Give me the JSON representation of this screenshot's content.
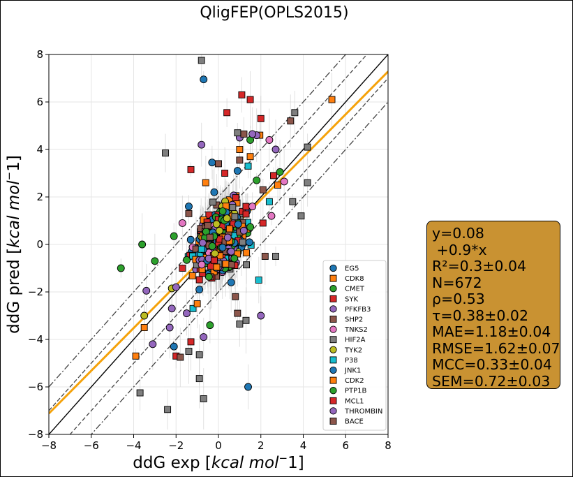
{
  "chart_data": {
    "type": "scatter",
    "title": "QligFEP(OPLS2015)",
    "xlabel_prefix": "ddG exp [",
    "ylabel_prefix": "ddG pred [",
    "unit": "kcal mol",
    "unit_sup": "−",
    "unit_tail": "1]",
    "xlim": [
      -8,
      8
    ],
    "ylim": [
      -8,
      8
    ],
    "xticks": [
      "−8",
      "−6",
      "−4",
      "−2",
      "0",
      "2",
      "4",
      "6",
      "8"
    ],
    "yticks": [
      "−8",
      "−6",
      "−4",
      "−2",
      "0",
      "2",
      "4",
      "6",
      "8"
    ],
    "grid": true,
    "legend_position": "lower-right",
    "reference_lines": {
      "identity": {
        "slope": 1,
        "intercept": 0,
        "color": "#000000",
        "style": "solid"
      },
      "offset_1": {
        "offset": 1,
        "color": "#444444",
        "style": "dashed"
      },
      "offset_2": {
        "offset": 2,
        "color": "#444444",
        "style": "dashdot"
      },
      "fit": {
        "slope": 0.9,
        "intercept": 0.08,
        "color": "#f5a20a"
      }
    },
    "series": [
      {
        "name": "EG5",
        "marker": "circle",
        "color": "#1f77b4"
      },
      {
        "name": "CDK8",
        "marker": "square",
        "color": "#ff7f0e"
      },
      {
        "name": "CMET",
        "marker": "circle",
        "color": "#2ca02c"
      },
      {
        "name": "SYK",
        "marker": "square",
        "color": "#d62728"
      },
      {
        "name": "PFKFB3",
        "marker": "circle",
        "color": "#9467bd"
      },
      {
        "name": "SHP2",
        "marker": "square",
        "color": "#8c564b"
      },
      {
        "name": "TNKS2",
        "marker": "circle",
        "color": "#e377c2"
      },
      {
        "name": "HIF2A",
        "marker": "square",
        "color": "#7f7f7f"
      },
      {
        "name": "TYK2",
        "marker": "circle",
        "color": "#bcbd22"
      },
      {
        "name": "P38",
        "marker": "square",
        "color": "#17becf"
      },
      {
        "name": "JNK1",
        "marker": "circle",
        "color": "#1f77b4"
      },
      {
        "name": "CDK2",
        "marker": "square",
        "color": "#ff7f0e"
      },
      {
        "name": "PTP1B",
        "marker": "circle",
        "color": "#2ca02c"
      },
      {
        "name": "MCL1",
        "marker": "square",
        "color": "#d62728"
      },
      {
        "name": "THROMBIN",
        "marker": "circle",
        "color": "#9467bd"
      },
      {
        "name": "BACE",
        "marker": "square",
        "color": "#8c564b"
      }
    ],
    "points": [
      {
        "s": 0,
        "x": -0.7,
        "y": 6.95
      },
      {
        "s": 0,
        "x": 1.4,
        "y": -6.0
      },
      {
        "s": 0,
        "x": -0.3,
        "y": 3.45
      },
      {
        "s": 0,
        "x": -1.4,
        "y": 1.6
      },
      {
        "s": 0,
        "x": -0.9,
        "y": -1.9
      },
      {
        "s": 0,
        "x": 0.9,
        "y": 3.1
      },
      {
        "s": 1,
        "x": 5.35,
        "y": 6.1
      },
      {
        "s": 1,
        "x": -3.9,
        "y": -4.7
      },
      {
        "s": 1,
        "x": 1.95,
        "y": 4.6
      },
      {
        "s": 1,
        "x": -0.6,
        "y": 2.6
      },
      {
        "s": 1,
        "x": 1.5,
        "y": 3.7
      },
      {
        "s": 1,
        "x": 2.8,
        "y": 2.5
      },
      {
        "s": 2,
        "x": -4.6,
        "y": -1.0
      },
      {
        "s": 2,
        "x": -3.6,
        "y": 0.0
      },
      {
        "s": 2,
        "x": -3.0,
        "y": -0.7
      },
      {
        "s": 2,
        "x": 2.9,
        "y": 3.05
      },
      {
        "s": 2,
        "x": -2.1,
        "y": 0.35
      },
      {
        "s": 2,
        "x": 1.5,
        "y": 4.4
      },
      {
        "s": 3,
        "x": 1.1,
        "y": 6.3
      },
      {
        "s": 3,
        "x": 1.5,
        "y": 6.1
      },
      {
        "s": 3,
        "x": 0.4,
        "y": 5.55
      },
      {
        "s": 3,
        "x": -1.3,
        "y": 3.15
      },
      {
        "s": 3,
        "x": 2.0,
        "y": 5.3
      },
      {
        "s": 3,
        "x": -2.0,
        "y": -4.7
      },
      {
        "s": 3,
        "x": -1.3,
        "y": -4.1
      },
      {
        "s": 3,
        "x": 1.3,
        "y": 1.6
      },
      {
        "s": 3,
        "x": 2.6,
        "y": 2.9
      },
      {
        "s": 4,
        "x": -3.4,
        "y": -1.95
      },
      {
        "s": 4,
        "x": -3.1,
        "y": -4.2
      },
      {
        "s": 4,
        "x": -0.8,
        "y": 4.2
      },
      {
        "s": 4,
        "x": 2.7,
        "y": 4.0
      },
      {
        "s": 4,
        "x": 2.0,
        "y": -3.0
      },
      {
        "s": 4,
        "x": -2.3,
        "y": -3.5
      },
      {
        "s": 4,
        "x": 1.0,
        "y": 4.5
      },
      {
        "s": 4,
        "x": -2.2,
        "y": -2.7
      },
      {
        "s": 4,
        "x": -0.7,
        "y": -3.9
      },
      {
        "s": 5,
        "x": 3.4,
        "y": 5.2
      },
      {
        "s": 5,
        "x": 0.0,
        "y": 3.4
      },
      {
        "s": 5,
        "x": 1.2,
        "y": 4.65
      },
      {
        "s": 5,
        "x": -1.8,
        "y": -4.75
      },
      {
        "s": 5,
        "x": 0.9,
        "y": -2.9
      },
      {
        "s": 5,
        "x": 2.1,
        "y": 2.3
      },
      {
        "s": 6,
        "x": 2.4,
        "y": 4.4
      },
      {
        "s": 6,
        "x": 3.1,
        "y": 2.65
      },
      {
        "s": 6,
        "x": 2.5,
        "y": 1.2
      },
      {
        "s": 6,
        "x": 1.6,
        "y": 1.6
      },
      {
        "s": 6,
        "x": -1.7,
        "y": 0.9
      },
      {
        "s": 7,
        "x": -0.8,
        "y": 7.75
      },
      {
        "s": 7,
        "x": 3.6,
        "y": 5.55
      },
      {
        "s": 7,
        "x": 4.2,
        "y": 4.1
      },
      {
        "s": 7,
        "x": -2.5,
        "y": 3.85
      },
      {
        "s": 7,
        "x": 4.2,
        "y": 2.6
      },
      {
        "s": 7,
        "x": 3.5,
        "y": 1.8
      },
      {
        "s": 7,
        "x": 3.9,
        "y": 1.2
      },
      {
        "s": 7,
        "x": -3.7,
        "y": -6.25
      },
      {
        "s": 7,
        "x": -2.4,
        "y": -6.95
      },
      {
        "s": 7,
        "x": -0.7,
        "y": -6.5
      },
      {
        "s": 7,
        "x": -0.9,
        "y": -5.65
      },
      {
        "s": 7,
        "x": -1.4,
        "y": -4.5
      },
      {
        "s": 7,
        "x": -0.9,
        "y": -4.65
      },
      {
        "s": 7,
        "x": 1.3,
        "y": -3.2
      },
      {
        "s": 7,
        "x": 1.0,
        "y": -3.35
      },
      {
        "s": 7,
        "x": 2.7,
        "y": -0.5
      },
      {
        "s": 7,
        "x": 0.9,
        "y": 4.7
      },
      {
        "s": 8,
        "x": -3.5,
        "y": -3.0
      },
      {
        "s": 8,
        "x": -2.2,
        "y": -1.85
      },
      {
        "s": 8,
        "x": 0.4,
        "y": 1.1
      },
      {
        "s": 9,
        "x": 2.4,
        "y": 1.8
      },
      {
        "s": 9,
        "x": -1.2,
        "y": -2.7
      },
      {
        "s": 9,
        "x": 1.4,
        "y": 3.3
      },
      {
        "s": 9,
        "x": -0.8,
        "y": -0.2
      },
      {
        "s": 9,
        "x": 1.9,
        "y": -1.5
      },
      {
        "s": 10,
        "x": -2.1,
        "y": -4.3
      },
      {
        "s": 10,
        "x": 0.6,
        "y": -1.6
      },
      {
        "s": 10,
        "x": -0.2,
        "y": 2.2
      },
      {
        "s": 11,
        "x": -3.5,
        "y": -3.5
      },
      {
        "s": 11,
        "x": 1.0,
        "y": 4.0
      },
      {
        "s": 11,
        "x": -1.0,
        "y": -2.5
      },
      {
        "s": 12,
        "x": 1.8,
        "y": 2.7
      },
      {
        "s": 12,
        "x": -0.4,
        "y": -3.4
      },
      {
        "s": 12,
        "x": 0.2,
        "y": 1.4
      },
      {
        "s": 13,
        "x": -1.7,
        "y": -1.0
      },
      {
        "s": 13,
        "x": 2.1,
        "y": 0.9
      },
      {
        "s": 13,
        "x": 0.3,
        "y": 3.0
      },
      {
        "s": 14,
        "x": 1.8,
        "y": 4.6
      },
      {
        "s": 14,
        "x": 1.6,
        "y": 4.65
      },
      {
        "s": 14,
        "x": -2.0,
        "y": -1.8
      },
      {
        "s": 14,
        "x": 0.6,
        "y": -0.3
      },
      {
        "s": 14,
        "x": -1.5,
        "y": -2.9
      },
      {
        "s": 15,
        "x": 1.0,
        "y": 3.55
      },
      {
        "s": 15,
        "x": -1.4,
        "y": 1.3
      },
      {
        "s": 15,
        "x": 0.8,
        "y": -2.2
      },
      {
        "s": 15,
        "x": -0.5,
        "y": 0.8
      },
      {
        "s": 15,
        "x": 2.2,
        "y": -0.5
      }
    ],
    "cluster": {
      "mean_x": 0.1,
      "mean_y": 0.2,
      "sd_x": 0.9,
      "sd_y": 1.2,
      "count": 560
    }
  },
  "stats_box": [
    "y=0.08",
    " +0.9*x",
    "R²=0.3±0.04",
    "N=672",
    "ρ=0.53",
    "τ=0.38±0.02",
    "MAE=1.18±0.04",
    "RMSE=1.62±0.07",
    "MCC=0.33±0.04",
    "SEM=0.72±0.03"
  ]
}
